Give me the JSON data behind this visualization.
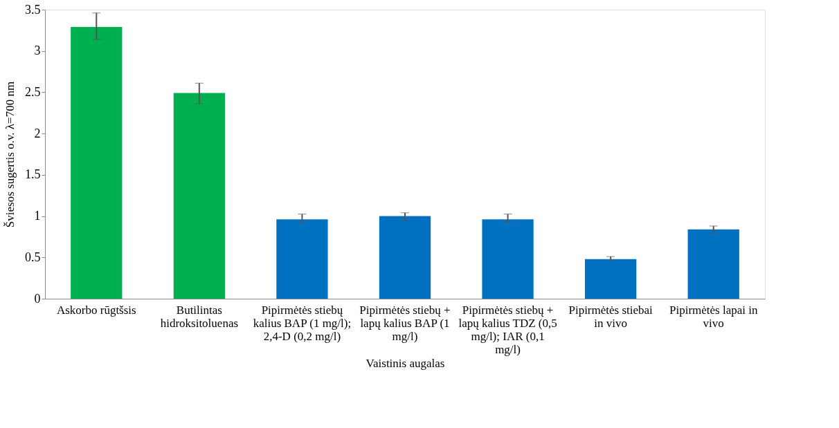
{
  "chart_data": {
    "type": "bar",
    "xlabel": "Vaistinis augalas",
    "ylabel": "Šviesos sugertis o.v. λ=700 nm",
    "categories": [
      "Askorbo rūgtšsis",
      "Butilintas hidroksitoluenas",
      "Pipirmėtės stiebų kalius BAP (1 mg/l); 2,4-D (0,2 mg/l)",
      "Pipirmėtės stiebų + lapų kalius BAP (1 mg/l)",
      "Pipirmėtės stiebų + lapų kalius TDZ (0,5 mg/l); IAR (0,1 mg/l)",
      "Pipirmėtės stiebai in vivo",
      "Pipirmėtės lapai in vivo"
    ],
    "values": [
      3.29,
      2.49,
      0.96,
      1.0,
      0.96,
      0.48,
      0.84
    ],
    "errors": [
      [
        3.14,
        3.46
      ],
      [
        2.36,
        2.61
      ],
      [
        0.925,
        1.025
      ],
      [
        0.94,
        1.04
      ],
      [
        0.925,
        1.025
      ],
      [
        0.46,
        0.51
      ],
      [
        0.8,
        0.88
      ]
    ],
    "colors": [
      "#00b050",
      "#00b050",
      "#0070c0",
      "#0070c0",
      "#0070c0",
      "#0070c0",
      "#0070c0"
    ],
    "ylim": [
      0,
      3.5
    ],
    "yticks": [
      0,
      0.5,
      1,
      1.5,
      2,
      2.5,
      3,
      3.5
    ],
    "grid": false
  }
}
